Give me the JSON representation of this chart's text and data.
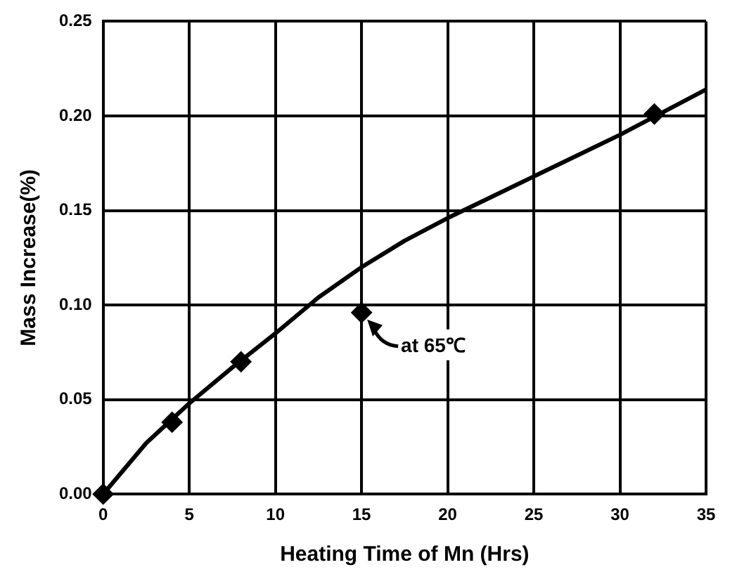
{
  "chart_data": {
    "type": "scatter",
    "xlabel": "Heating Time of Mn (Hrs)",
    "ylabel": "Mass Increase(%)",
    "xlim": [
      0,
      35
    ],
    "xticks": [
      0,
      5,
      10,
      15,
      20,
      25,
      30,
      35
    ],
    "ylim": [
      0,
      0.25
    ],
    "yticks": [
      {
        "value": 0,
        "label": "0.00"
      },
      {
        "value": 0.05,
        "label": "0.05"
      },
      {
        "value": 0.1,
        "label": "0.10"
      },
      {
        "value": 0.15,
        "label": "0.15"
      },
      {
        "value": 0.2,
        "label": "0.20"
      },
      {
        "value": 0.25,
        "label": "0.25"
      }
    ],
    "grid": true,
    "legend": false,
    "series": [
      {
        "type": "line",
        "color": "#000000",
        "marker": "none",
        "line_style": "solid",
        "x": [
          0,
          2.5,
          5,
          7.5,
          10,
          12.5,
          15,
          17.5,
          20,
          22.5,
          25,
          27.5,
          30,
          32.5,
          35
        ],
        "values": [
          0,
          0.027,
          0.048,
          0.067,
          0.085,
          0.104,
          0.12,
          0.134,
          0.146,
          0.157,
          0.168,
          0.179,
          0.19,
          0.202,
          0.214
        ]
      },
      {
        "type": "scatter",
        "color": "#000000",
        "marker": "diamond",
        "x": [
          0,
          4,
          8,
          15,
          32
        ],
        "values": [
          0,
          0.038,
          0.07,
          0.096,
          0.201
        ]
      }
    ],
    "annotations": [
      {
        "text": "at 65℃",
        "x": 15,
        "y": 0.096
      }
    ]
  }
}
